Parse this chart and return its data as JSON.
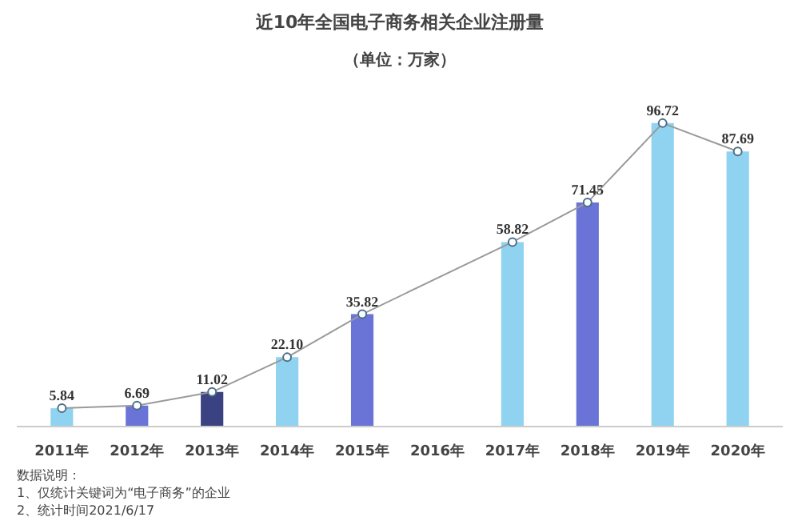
{
  "chart_data": {
    "type": "bar",
    "title": "近10年全国电子商务相关企业注册量",
    "subtitle": "（单位：万家）",
    "categories": [
      "2011年",
      "2012年",
      "2013年",
      "2014年",
      "2015年",
      "2016年",
      "2017年",
      "2018年",
      "2019年",
      "2020年"
    ],
    "series": [
      {
        "colors": [
          "#8fd3f0",
          "#6a74d6",
          "#3b4282",
          "#8fd3f0",
          "#6a74d6",
          "#3b4282",
          "#8fd3f0",
          "#6a74d6",
          "#8fd3f0",
          "#8fd3f0"
        ],
        "values": [
          5.84,
          6.69,
          11.02,
          22.1,
          35.82,
          null,
          58.82,
          71.45,
          96.72,
          87.69
        ]
      },
      {
        "type": "line",
        "color": "#9a9a9a",
        "marker": "circle",
        "values": [
          5.84,
          6.69,
          11.02,
          22.1,
          35.82,
          null,
          58.82,
          71.45,
          96.72,
          87.69
        ],
        "value_labels": [
          "5.84",
          "6.69",
          "11.02",
          "22.10",
          "35.82",
          null,
          "58.82",
          "71.45",
          "96.72",
          "87.69"
        ]
      }
    ],
    "tick_labels": "x",
    "grid": false,
    "annotations": [
      "数据说明：",
      "1、仅统计关键词为“电子商务”的企业",
      "2、统计时间2021/6/17"
    ]
  }
}
